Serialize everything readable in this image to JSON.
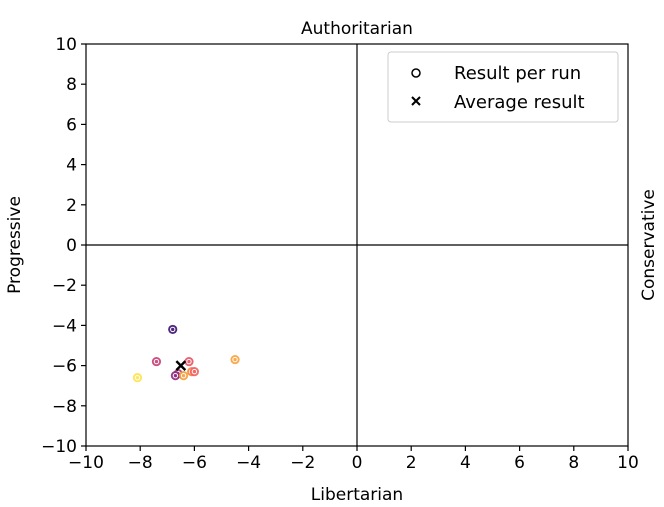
{
  "chart_data": {
    "type": "scatter",
    "title_top": "Authoritarian",
    "xlabel": "Libertarian",
    "ylabel_left": "Progressive",
    "ylabel_right": "Conservative",
    "xlim": [
      -10,
      10
    ],
    "ylim": [
      -10,
      10
    ],
    "xticks": [
      "−10",
      "−8",
      "−6",
      "−4",
      "−2",
      "0",
      "2",
      "4",
      "6",
      "8",
      "10"
    ],
    "yticks": [
      "10",
      "8",
      "6",
      "4",
      "2",
      "0",
      "−2",
      "−4",
      "−6",
      "−8",
      "−10"
    ],
    "grid": false,
    "legend": {
      "placement": "top-right",
      "entries": [
        {
          "marker": "circle",
          "label": "Result per run"
        },
        {
          "marker": "x",
          "label": "Average result"
        }
      ]
    },
    "points": [
      {
        "x": -6.8,
        "y": -4.2,
        "color": "#3b0f70"
      },
      {
        "x": -7.4,
        "y": -5.8,
        "color": "#c83e73"
      },
      {
        "x": -6.6,
        "y": -6.4,
        "color": "#b5367a"
      },
      {
        "x": -6.7,
        "y": -6.5,
        "color": "#8c2981"
      },
      {
        "x": -6.2,
        "y": -5.8,
        "color": "#e75263"
      },
      {
        "x": -6.4,
        "y": -6.5,
        "color": "#f3a03a"
      },
      {
        "x": -6.1,
        "y": -6.3,
        "color": "#f7843c"
      },
      {
        "x": -6.0,
        "y": -6.3,
        "color": "#f1605d"
      },
      {
        "x": -4.5,
        "y": -5.7,
        "color": "#f8a23c"
      },
      {
        "x": -8.1,
        "y": -6.6,
        "color": "#fde34a"
      }
    ],
    "average": {
      "x": -6.5,
      "y": -6.0
    }
  }
}
